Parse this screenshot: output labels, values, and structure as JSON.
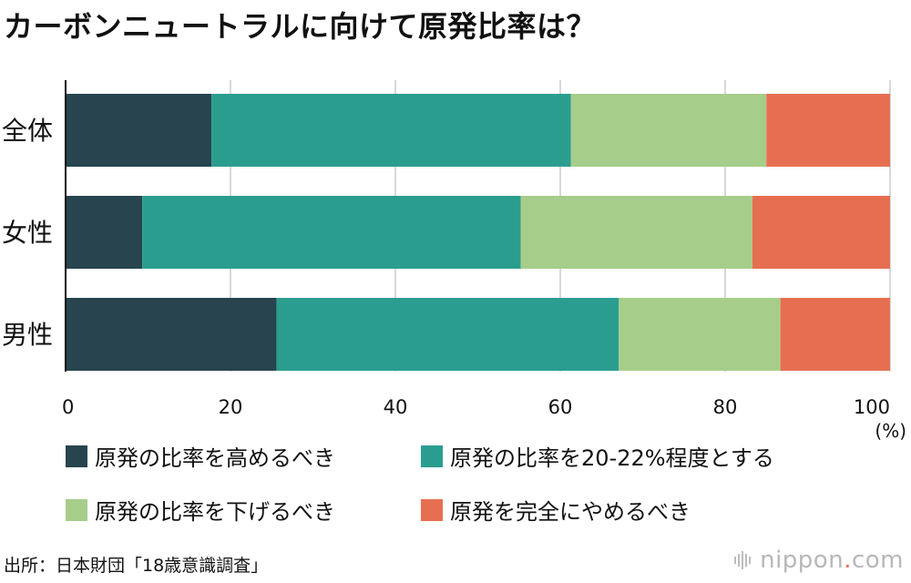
{
  "title": "カーボンニュートラルに向けて原発比率は？",
  "chart_data": {
    "type": "bar",
    "orientation": "horizontal",
    "stacked": true,
    "categories": [
      "全体",
      "女性",
      "男性"
    ],
    "series": [
      {
        "name": "原発の比率を高めるべき",
        "color": "#27444f",
        "values": [
          17.7,
          9.3,
          25.6
        ]
      },
      {
        "name": "原発の比率を20-22%程度とする",
        "color": "#2a9d8f",
        "values": [
          43.6,
          45.9,
          41.5
        ]
      },
      {
        "name": "原発の比率を下げるべき",
        "color": "#a6cd8a",
        "values": [
          23.7,
          28.1,
          19.6
        ]
      },
      {
        "name": "原発を完全にやめるべき",
        "color": "#e76f51",
        "values": [
          15.0,
          16.7,
          13.3
        ]
      }
    ],
    "xlim": [
      0,
      100
    ],
    "xticks": [
      "0",
      "20",
      "40",
      "60",
      "80",
      "100"
    ],
    "unit": "(%)",
    "grid": true,
    "legend_position": "bottom"
  },
  "footer": {
    "source": "出所：日本財団「18歳意識調査」",
    "brand": "nippon",
    "brand_dot": ".",
    "brand_suffix": "com"
  }
}
